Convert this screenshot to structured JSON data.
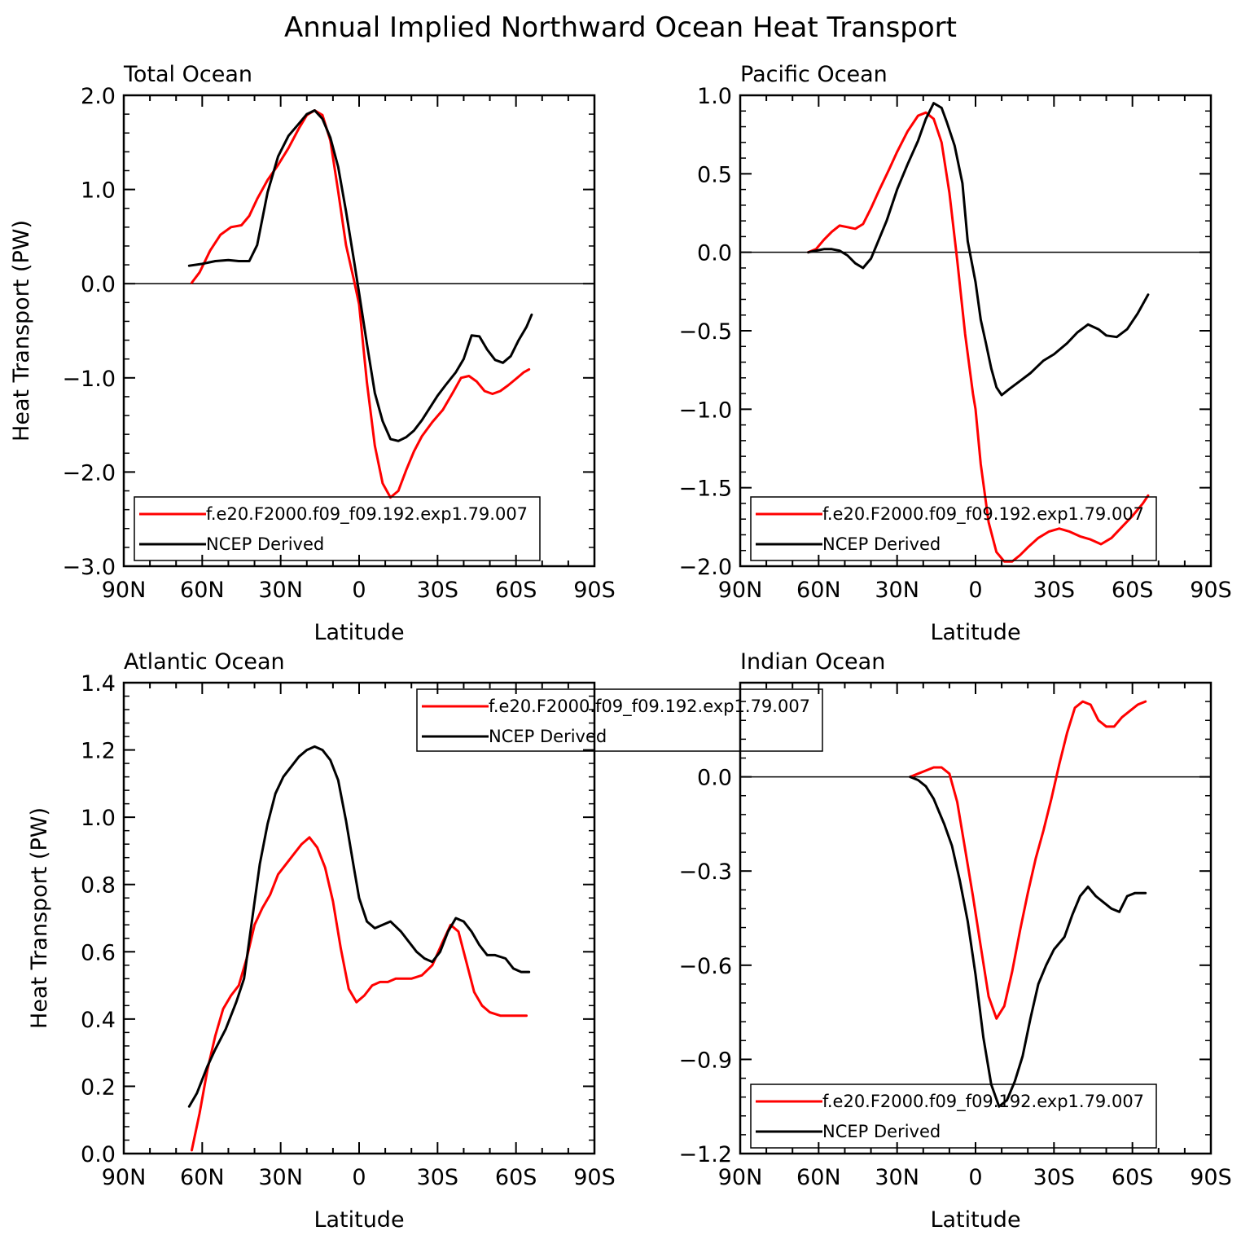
{
  "figure": {
    "title": "Annual Implied Northward Ocean Heat Transport",
    "legend_labels": [
      "f.e20.F2000.f09_f09.192.exp1.79.007",
      "NCEP Derived"
    ],
    "colors": {
      "model": "#ff0000",
      "ncep": "#000000",
      "axes": "#000000",
      "background": "#ffffff"
    }
  },
  "chart_data": [
    {
      "type": "line",
      "title": "Total Ocean",
      "xlabel": "Latitude",
      "ylabel": "Heat Transport (PW)",
      "xlim": [
        90,
        -90
      ],
      "ylim": [
        -3.0,
        2.0
      ],
      "xticks": [
        90,
        60,
        30,
        0,
        -30,
        -60,
        -90
      ],
      "xtick_labels": [
        "90N",
        "60N",
        "30N",
        "0",
        "30S",
        "60S",
        "90S"
      ],
      "yticks": [
        2.0,
        1.0,
        0.0,
        -1.0,
        -2.0,
        -3.0
      ],
      "ytick_labels": [
        "2.0",
        "1.0",
        "0.0",
        "−1.0",
        "−2.0",
        "−3.0"
      ],
      "zero_line": true,
      "legend_location": "lower-left",
      "series": [
        {
          "name": "f.e20.F2000.f09_f09.192.exp1.79.007",
          "color": "#ff0000",
          "x": [
            64,
            61,
            57,
            53,
            49,
            45,
            42,
            39,
            35,
            31,
            27,
            23,
            20,
            17,
            14,
            11,
            8,
            5,
            2,
            0,
            -3,
            -6,
            -9,
            -12,
            -15,
            -18,
            -21,
            -24,
            -28,
            -32,
            -36,
            -39,
            -42,
            -45,
            -48,
            -51,
            -54,
            -57,
            -60,
            -63,
            -65
          ],
          "y": [
            0.01,
            0.12,
            0.35,
            0.52,
            0.6,
            0.62,
            0.72,
            0.9,
            1.1,
            1.26,
            1.44,
            1.65,
            1.79,
            1.84,
            1.79,
            1.52,
            0.98,
            0.41,
            0.04,
            -0.22,
            -1.05,
            -1.72,
            -2.12,
            -2.27,
            -2.2,
            -1.98,
            -1.78,
            -1.62,
            -1.47,
            -1.34,
            -1.15,
            -1.0,
            -0.98,
            -1.04,
            -1.14,
            -1.17,
            -1.14,
            -1.08,
            -1.01,
            -0.94,
            -0.91
          ]
        },
        {
          "name": "NCEP Derived",
          "color": "#000000",
          "x": [
            65,
            60,
            55,
            50,
            46,
            42,
            39,
            35,
            31,
            27,
            23,
            20,
            17,
            14,
            11,
            8,
            5,
            2,
            0,
            -3,
            -6,
            -9,
            -12,
            -15,
            -18,
            -21,
            -24,
            -27,
            -30,
            -33,
            -37,
            -40,
            -43,
            -46,
            -49,
            -52,
            -55,
            -58,
            -61,
            -64,
            -66
          ],
          "y": [
            0.19,
            0.21,
            0.24,
            0.25,
            0.24,
            0.24,
            0.41,
            0.97,
            1.35,
            1.57,
            1.7,
            1.8,
            1.84,
            1.75,
            1.55,
            1.24,
            0.77,
            0.25,
            -0.1,
            -0.64,
            -1.16,
            -1.46,
            -1.65,
            -1.67,
            -1.63,
            -1.56,
            -1.45,
            -1.32,
            -1.19,
            -1.08,
            -0.94,
            -0.8,
            -0.55,
            -0.56,
            -0.7,
            -0.81,
            -0.84,
            -0.77,
            -0.6,
            -0.46,
            -0.33
          ]
        }
      ]
    },
    {
      "type": "line",
      "title": "Pacific Ocean",
      "xlabel": "Latitude",
      "ylabel": "",
      "xlim": [
        90,
        -90
      ],
      "ylim": [
        -2.0,
        1.0
      ],
      "xticks": [
        90,
        60,
        30,
        0,
        -30,
        -60,
        -90
      ],
      "xtick_labels": [
        "90N",
        "60N",
        "30N",
        "0",
        "30S",
        "60S",
        "90S"
      ],
      "yticks": [
        1.0,
        0.5,
        0.0,
        -0.5,
        -1.0,
        -1.5,
        -2.0
      ],
      "ytick_labels": [
        "1.0",
        "0.5",
        "0.0",
        "−0.5",
        "−1.0",
        "−1.5",
        "−2.0"
      ],
      "zero_line": true,
      "legend_location": "lower-left",
      "series": [
        {
          "name": "f.e20.F2000.f09_f09.192.exp1.79.007",
          "color": "#ff0000",
          "x": [
            64,
            61,
            58,
            55,
            52,
            49,
            46,
            43,
            40,
            37,
            33,
            30,
            26,
            22,
            19,
            16,
            13,
            10,
            7,
            4,
            1,
            0,
            -2,
            -5,
            -8,
            -11,
            -14,
            -17,
            -20,
            -24,
            -28,
            -32,
            -36,
            -40,
            -44,
            -48,
            -52,
            -56,
            -60,
            -64,
            -66
          ],
          "y": [
            0.0,
            0.02,
            0.08,
            0.13,
            0.17,
            0.16,
            0.15,
            0.18,
            0.28,
            0.39,
            0.53,
            0.64,
            0.77,
            0.87,
            0.89,
            0.85,
            0.7,
            0.38,
            -0.05,
            -0.52,
            -0.9,
            -1.0,
            -1.35,
            -1.72,
            -1.91,
            -1.97,
            -1.97,
            -1.93,
            -1.88,
            -1.82,
            -1.78,
            -1.76,
            -1.78,
            -1.81,
            -1.83,
            -1.86,
            -1.82,
            -1.75,
            -1.68,
            -1.6,
            -1.55
          ]
        },
        {
          "name": "NCEP Derived",
          "color": "#000000",
          "x": [
            64,
            61,
            58,
            55,
            52,
            49,
            46,
            43,
            40,
            37,
            34,
            30,
            26,
            22,
            19,
            16,
            13,
            11,
            8,
            5,
            3,
            0,
            -2,
            -4,
            -6,
            -8,
            -10,
            -13,
            -17,
            -21,
            -26,
            -30,
            -35,
            -39,
            -43,
            -47,
            -50,
            -54,
            -58,
            -62,
            -66
          ],
          "y": [
            0.0,
            0.01,
            0.02,
            0.02,
            0.01,
            -0.02,
            -0.07,
            -0.1,
            -0.04,
            0.08,
            0.2,
            0.4,
            0.56,
            0.71,
            0.85,
            0.95,
            0.92,
            0.83,
            0.68,
            0.44,
            0.07,
            -0.19,
            -0.43,
            -0.58,
            -0.74,
            -0.86,
            -0.91,
            -0.87,
            -0.82,
            -0.77,
            -0.69,
            -0.65,
            -0.58,
            -0.51,
            -0.46,
            -0.49,
            -0.53,
            -0.54,
            -0.49,
            -0.39,
            -0.27
          ]
        }
      ]
    },
    {
      "type": "line",
      "title": "Atlantic Ocean",
      "xlabel": "Latitude",
      "ylabel": "Heat Transport (PW)",
      "xlim": [
        90,
        -90
      ],
      "ylim": [
        0.0,
        1.4
      ],
      "xticks": [
        90,
        60,
        30,
        0,
        -30,
        -60,
        -90
      ],
      "xtick_labels": [
        "90N",
        "60N",
        "30N",
        "0",
        "30S",
        "60S",
        "90S"
      ],
      "yticks": [
        1.4,
        1.2,
        1.0,
        0.8,
        0.6,
        0.4,
        0.2,
        0.0
      ],
      "ytick_labels": [
        "1.4",
        "1.2",
        "1.0",
        "0.8",
        "0.6",
        "0.4",
        "0.2",
        "0.0"
      ],
      "zero_line": false,
      "legend_location": "top-right",
      "series": [
        {
          "name": "f.e20.F2000.f09_f09.192.exp1.79.007",
          "color": "#ff0000",
          "x": [
            64,
            61,
            58,
            55,
            52,
            49,
            46,
            43,
            40,
            37,
            34,
            31,
            28,
            25,
            22,
            19,
            16,
            13,
            10,
            7,
            4,
            1,
            -2,
            -5,
            -8,
            -11,
            -14,
            -17,
            -20,
            -24,
            -28,
            -32,
            -35,
            -38,
            -41,
            -44,
            -47,
            -50,
            -54,
            -58,
            -62,
            -64
          ],
          "y": [
            0.01,
            0.12,
            0.25,
            0.35,
            0.43,
            0.47,
            0.5,
            0.58,
            0.68,
            0.73,
            0.77,
            0.83,
            0.86,
            0.89,
            0.92,
            0.94,
            0.91,
            0.85,
            0.75,
            0.61,
            0.49,
            0.45,
            0.47,
            0.5,
            0.51,
            0.51,
            0.52,
            0.52,
            0.52,
            0.53,
            0.56,
            0.63,
            0.68,
            0.66,
            0.57,
            0.48,
            0.44,
            0.42,
            0.41,
            0.41,
            0.41,
            0.41
          ]
        },
        {
          "name": "NCEP Derived",
          "color": "#000000",
          "x": [
            65,
            62,
            58,
            55,
            51,
            47,
            44,
            41,
            38,
            35,
            32,
            29,
            26,
            23,
            20,
            17,
            14,
            11,
            8,
            5,
            2,
            0,
            -3,
            -6,
            -9,
            -12,
            -16,
            -19,
            -22,
            -25,
            -28,
            -31,
            -34,
            -37,
            -40,
            -43,
            -46,
            -49,
            -52,
            -56,
            -59,
            -62,
            -65
          ],
          "y": [
            0.14,
            0.18,
            0.26,
            0.31,
            0.37,
            0.45,
            0.52,
            0.69,
            0.86,
            0.98,
            1.07,
            1.12,
            1.15,
            1.18,
            1.2,
            1.21,
            1.2,
            1.17,
            1.11,
            0.99,
            0.85,
            0.76,
            0.69,
            0.67,
            0.68,
            0.69,
            0.66,
            0.63,
            0.6,
            0.58,
            0.57,
            0.6,
            0.66,
            0.7,
            0.69,
            0.66,
            0.62,
            0.59,
            0.59,
            0.58,
            0.55,
            0.54,
            0.54
          ]
        }
      ]
    },
    {
      "type": "line",
      "title": "Indian Ocean",
      "xlabel": "Latitude",
      "ylabel": "",
      "xlim": [
        90,
        -90
      ],
      "ylim": [
        -1.2,
        0.3
      ],
      "xticks": [
        90,
        60,
        30,
        0,
        -30,
        -60,
        -90
      ],
      "xtick_labels": [
        "90N",
        "60N",
        "30N",
        "0",
        "30S",
        "60S",
        "90S"
      ],
      "yticks": [
        0.0,
        -0.3,
        -0.6,
        -0.9,
        -1.2
      ],
      "ytick_labels": [
        "0.0",
        "−0.3",
        "−0.6",
        "−0.9",
        "−1.2"
      ],
      "zero_line": true,
      "legend_location": "lower-left",
      "series": [
        {
          "name": "f.e20.F2000.f09_f09.192.exp1.79.007",
          "color": "#ff0000",
          "x": [
            25,
            22,
            19,
            16,
            13,
            10,
            7,
            4,
            1,
            -2,
            -5,
            -8,
            -11,
            -14,
            -17,
            -20,
            -23,
            -26,
            -29,
            -32,
            -35,
            -38,
            -41,
            -44,
            -47,
            -50,
            -53,
            -56,
            -59,
            -62,
            -65
          ],
          "y": [
            0.0,
            0.01,
            0.02,
            0.03,
            0.03,
            0.01,
            -0.08,
            -0.23,
            -0.38,
            -0.54,
            -0.7,
            -0.77,
            -0.73,
            -0.62,
            -0.49,
            -0.37,
            -0.26,
            -0.17,
            -0.07,
            0.04,
            0.14,
            0.22,
            0.24,
            0.23,
            0.18,
            0.16,
            0.16,
            0.19,
            0.21,
            0.23,
            0.24
          ]
        },
        {
          "name": "NCEP Derived",
          "color": "#000000",
          "x": [
            25,
            22,
            19,
            16,
            14,
            12,
            9,
            6,
            3,
            0,
            -3,
            -6,
            -9,
            -12,
            -15,
            -18,
            -21,
            -24,
            -27,
            -30,
            -34,
            -37,
            -40,
            -43,
            -46,
            -49,
            -52,
            -55,
            -58,
            -61,
            -65
          ],
          "y": [
            0.0,
            -0.01,
            -0.03,
            -0.07,
            -0.11,
            -0.15,
            -0.22,
            -0.33,
            -0.46,
            -0.63,
            -0.83,
            -0.98,
            -1.05,
            -1.03,
            -0.97,
            -0.89,
            -0.77,
            -0.66,
            -0.6,
            -0.55,
            -0.51,
            -0.44,
            -0.38,
            -0.35,
            -0.38,
            -0.4,
            -0.42,
            -0.43,
            -0.38,
            -0.37,
            -0.37
          ]
        }
      ]
    }
  ]
}
